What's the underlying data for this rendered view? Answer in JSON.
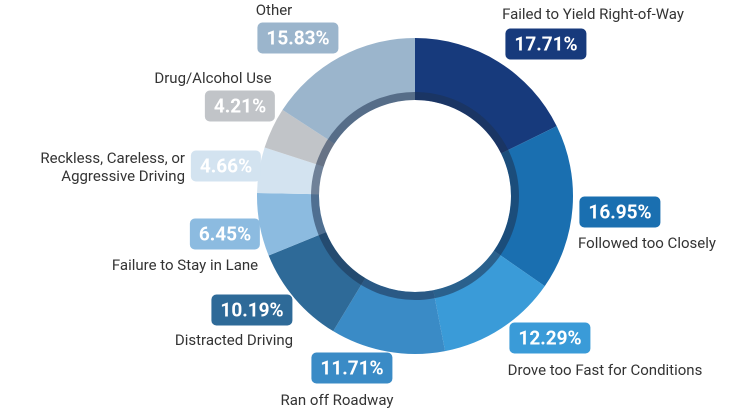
{
  "chart_data": {
    "type": "donut",
    "categories": [
      "Failed to Yield Right-of-Way",
      "Followed too Closely",
      "Drove too Fast for Conditions",
      "Ran off Roadway",
      "Distracted Driving",
      "Failure to Stay in Lane",
      "Reckless, Careless, or Aggressive Driving",
      "Drug/Alcohol Use",
      "Other"
    ],
    "values": [
      17.71,
      16.95,
      12.29,
      11.71,
      10.19,
      6.45,
      4.66,
      4.21,
      15.83
    ],
    "value_labels": [
      "17.71%",
      "16.95%",
      "12.29%",
      "11.71%",
      "10.19%",
      "6.45%",
      "4.66%",
      "4.21%",
      "15.83%"
    ],
    "colors": [
      "#173a7c",
      "#1a6fb0",
      "#3a9bd8",
      "#3a8bc6",
      "#2e6a98",
      "#8cbbe0",
      "#d3e3f0",
      "#c1c4c8",
      "#9bb5cc"
    ]
  }
}
